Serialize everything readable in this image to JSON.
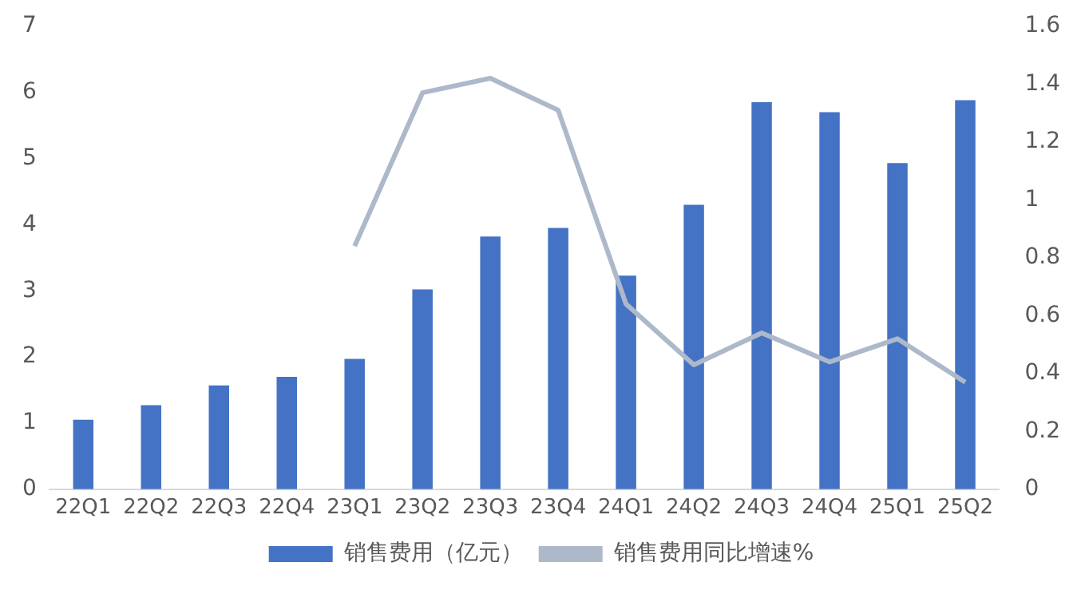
{
  "chart_data": {
    "type": "bar",
    "categories": [
      "22Q1",
      "22Q2",
      "22Q3",
      "22Q4",
      "23Q1",
      "23Q2",
      "23Q3",
      "23Q4",
      "24Q1",
      "24Q2",
      "24Q3",
      "24Q4",
      "25Q1",
      "25Q2"
    ],
    "series": [
      {
        "name": "销售费用（亿元）",
        "color": "#4472c4",
        "values": [
          1.05,
          1.27,
          1.57,
          1.7,
          1.97,
          3.02,
          3.82,
          3.95,
          3.23,
          4.3,
          5.85,
          5.7,
          4.93,
          5.88
        ]
      },
      {
        "name": "销售费用同比增速%",
        "type": "line",
        "axis": "y2",
        "color": "#adb9ca",
        "values": [
          null,
          null,
          null,
          null,
          0.84,
          1.37,
          1.42,
          1.31,
          0.64,
          0.43,
          0.54,
          0.44,
          0.52,
          0.37
        ]
      }
    ],
    "ylim": [
      0,
      7
    ],
    "yticks": [
      0,
      1,
      2,
      3,
      4,
      5,
      6,
      7
    ],
    "y2lim": [
      0,
      1.6
    ],
    "y2ticks": [
      0,
      0.2,
      0.4,
      0.6,
      0.8,
      1,
      1.2,
      1.4,
      1.6
    ],
    "grid": false,
    "legend": "bottom",
    "marker": "none"
  }
}
